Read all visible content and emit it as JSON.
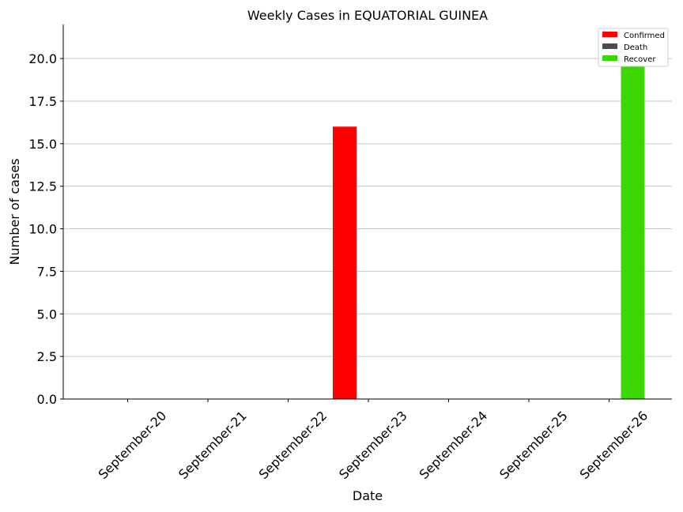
{
  "chart_data": {
    "type": "bar",
    "title": "Weekly Cases in EQUATORIAL GUINEA",
    "xlabel": "Date",
    "ylabel": "Number of cases",
    "categories": [
      "September-20",
      "September-21",
      "September-22",
      "September-23",
      "September-24",
      "September-25",
      "September-26"
    ],
    "series": [
      {
        "name": "Confirmed",
        "color": "#ff0000",
        "values": [
          0,
          0,
          0,
          16,
          0,
          0,
          0
        ]
      },
      {
        "name": "Death",
        "color": "#4d4d4d",
        "values": [
          0,
          0,
          0,
          0,
          0,
          0,
          0
        ]
      },
      {
        "name": "Recover",
        "color": "#3cd600",
        "values": [
          0,
          0,
          0,
          0,
          0,
          0,
          21
        ]
      }
    ],
    "ylim": [
      0,
      22
    ],
    "yticks": [
      "0.0",
      "2.5",
      "5.0",
      "7.5",
      "10.0",
      "12.5",
      "15.0",
      "17.5",
      "20.0"
    ],
    "grid": "horizontal",
    "legend_position": "top-right"
  }
}
